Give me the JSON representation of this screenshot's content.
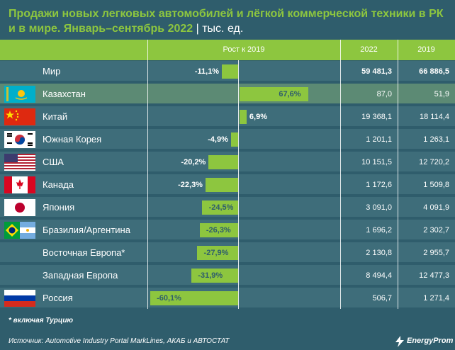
{
  "title": "Продажи новых легковых автомобилей и лёгкой коммерческой техники в РК и в мире. Январь–сентябрь 2022",
  "unit": "тыс. ед.",
  "footnote": "* включая Турцию",
  "source": "Источник: Automotive Industry Portal MarkLines, АКАБ и АВТОСТАТ",
  "brand": "EnergyProm",
  "colors": {
    "background": "#2f5d6c",
    "row": "#3e6d7a",
    "highlight_row": "#5c8a74",
    "accent": "#8dc63f",
    "text": "#ffffff"
  },
  "chart_data": {
    "type": "bar",
    "columns": [
      "Рост к 2019",
      "2022",
      "2019"
    ],
    "categories": [
      "Мир",
      "Казахстан",
      "Китай",
      "Южная Корея",
      "США",
      "Канада",
      "Япония",
      "Бразилия/Аргентина",
      "Восточная Европа*",
      "Западная Европа",
      "Россия"
    ],
    "flags": [
      null,
      "kz-flag",
      "cn-flag",
      "kr-flag",
      "us-flag",
      "ca-flag",
      "jp-flag",
      "br-ar-flag",
      null,
      null,
      "ru-flag"
    ],
    "highlight": "Казахстан",
    "growth_pct": [
      -11.1,
      67.6,
      6.9,
      -4.9,
      -20.2,
      -22.3,
      -24.5,
      -26.3,
      -27.9,
      -31.9,
      -60.1
    ],
    "growth_labels": [
      "-11,1%",
      "67,6%",
      "6,9%",
      "-4,9%",
      "-20,2%",
      "-22,3%",
      "-24,5%",
      "-26,3%",
      "-27,9%",
      "-31,9%",
      "-60,1%"
    ],
    "values_2022_labels": [
      "59 481,3",
      "87,0",
      "19 368,1",
      "1 201,1",
      "10 151,5",
      "1 172,6",
      "3 091,0",
      "1 696,2",
      "2 130,8",
      "8 494,4",
      "506,7"
    ],
    "values_2019_labels": [
      "66 886,5",
      "51,9",
      "18 114,4",
      "1 263,1",
      "12 720,2",
      "1 509,8",
      "4 091,9",
      "2 302,7",
      "2 955,7",
      "12 477,3",
      "1 271,4"
    ],
    "values_2022": [
      59481.3,
      87.0,
      19368.1,
      1201.1,
      10151.5,
      1172.6,
      3091.0,
      1696.2,
      2130.8,
      8494.4,
      506.7
    ],
    "values_2019": [
      66886.5,
      51.9,
      18114.4,
      1263.1,
      12720.2,
      1509.8,
      4091.9,
      2302.7,
      2955.7,
      12477.3,
      1271.4
    ]
  }
}
